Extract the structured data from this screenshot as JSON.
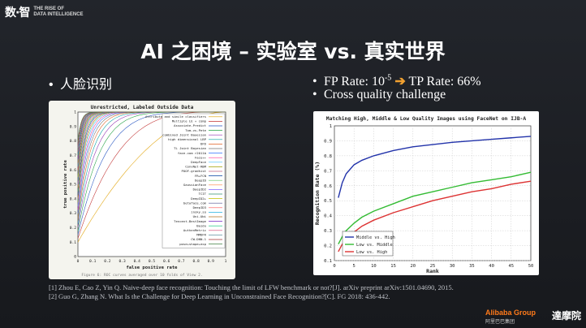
{
  "brand": {
    "mark": "数·智",
    "line1": "THE RISE OF",
    "line2": "DATA INTELLIGENCE"
  },
  "title": "AI 之困境 – 实验室 vs. 真实世界",
  "left_bullet": "人脸识别",
  "right_bullets": {
    "fp_prefix": "FP Rate: 10",
    "fp_exp": "-5",
    "tp": "TP Rate: 66%",
    "second": "Cross quality challenge"
  },
  "roc_chart": {
    "title": "Unrestricted, Labeled Outside Data",
    "xlabel": "false positive rate",
    "ylabel": "true positive rate",
    "caption": "Figure 6: ROC curves averaged over 10 folds of View 2.",
    "x_ticks": [
      "0",
      "0.1",
      "0.2",
      "0.3",
      "0.4",
      "0.5",
      "0.6",
      "0.7",
      "0.8",
      "0.9",
      "1"
    ],
    "y_ticks": [
      "0",
      "0.1",
      "0.2",
      "0.3",
      "0.4",
      "0.5",
      "0.6",
      "0.7",
      "0.8",
      "0.9",
      "1"
    ],
    "legend": [
      "Attribute and simile classifiers",
      "Multiple LE + comp",
      "Associate-Predict",
      "Tom-vs-Pete",
      "combined Joint Bayesian",
      "high dimensional LBP",
      "DFD",
      "TL Joint Bayesian",
      "face.com r2011b",
      "Face++",
      "DeepFace",
      "ConvNet-RBM",
      "POOF-gradhist",
      "FR+FCN",
      "DeepID",
      "GaussianFace",
      "DeepID2",
      "TCIT",
      "DeepID2+",
      "betaface.com",
      "DeepID3",
      "insky.so",
      "Uni-Ubi",
      "Tencent-BestImage",
      "Baidu",
      "AuthenMetric",
      "MMDFR",
      "CW-DNN-1",
      "pose+shape+exp"
    ]
  },
  "chart_data": {
    "type": "line",
    "title": "Matching High, Middle & Low Quality Images using FaceNet on IJB-A",
    "xlabel": "Rank",
    "ylabel": "Recognition Rate (%)",
    "xlim": [
      0,
      50
    ],
    "ylim": [
      0.1,
      1.0
    ],
    "x_ticks": [
      0,
      5,
      10,
      15,
      20,
      25,
      30,
      35,
      40,
      45,
      50
    ],
    "y_ticks": [
      0.1,
      0.2,
      0.3,
      0.4,
      0.5,
      0.6,
      0.7,
      0.8,
      0.9,
      1.0
    ],
    "grid": true,
    "legend_position": "bottom-left",
    "x": [
      1,
      2,
      3,
      5,
      7,
      10,
      15,
      20,
      25,
      30,
      35,
      40,
      45,
      50
    ],
    "series": [
      {
        "name": "Middle vs. High",
        "color": "#2233aa",
        "values": [
          0.52,
          0.62,
          0.68,
          0.74,
          0.77,
          0.8,
          0.835,
          0.86,
          0.875,
          0.89,
          0.9,
          0.91,
          0.92,
          0.93
        ]
      },
      {
        "name": "Low vs. Middle",
        "color": "#33bb33",
        "values": [
          0.21,
          0.26,
          0.3,
          0.35,
          0.39,
          0.43,
          0.48,
          0.53,
          0.56,
          0.59,
          0.62,
          0.64,
          0.66,
          0.69
        ]
      },
      {
        "name": "Low vs. High",
        "color": "#dd3333",
        "values": [
          0.16,
          0.21,
          0.24,
          0.29,
          0.33,
          0.37,
          0.42,
          0.46,
          0.5,
          0.53,
          0.56,
          0.58,
          0.61,
          0.63
        ]
      }
    ]
  },
  "references": [
    "[1] Zhou E, Cao Z, Yin Q. Naive-deep face recognition: Touching the limit of LFW benchmark or not?[J]. arXiv preprint arXiv:1501.04690, 2015.",
    "[2] Guo G, Zhang N. What Is the Challenge for Deep Learning in Unconstrained Face Recognition?[C]. FG 2018: 436-442."
  ],
  "footer": {
    "alibaba": "Alibaba Group",
    "alibaba_sub": "阿里巴巴集团",
    "damo": "達摩院"
  }
}
